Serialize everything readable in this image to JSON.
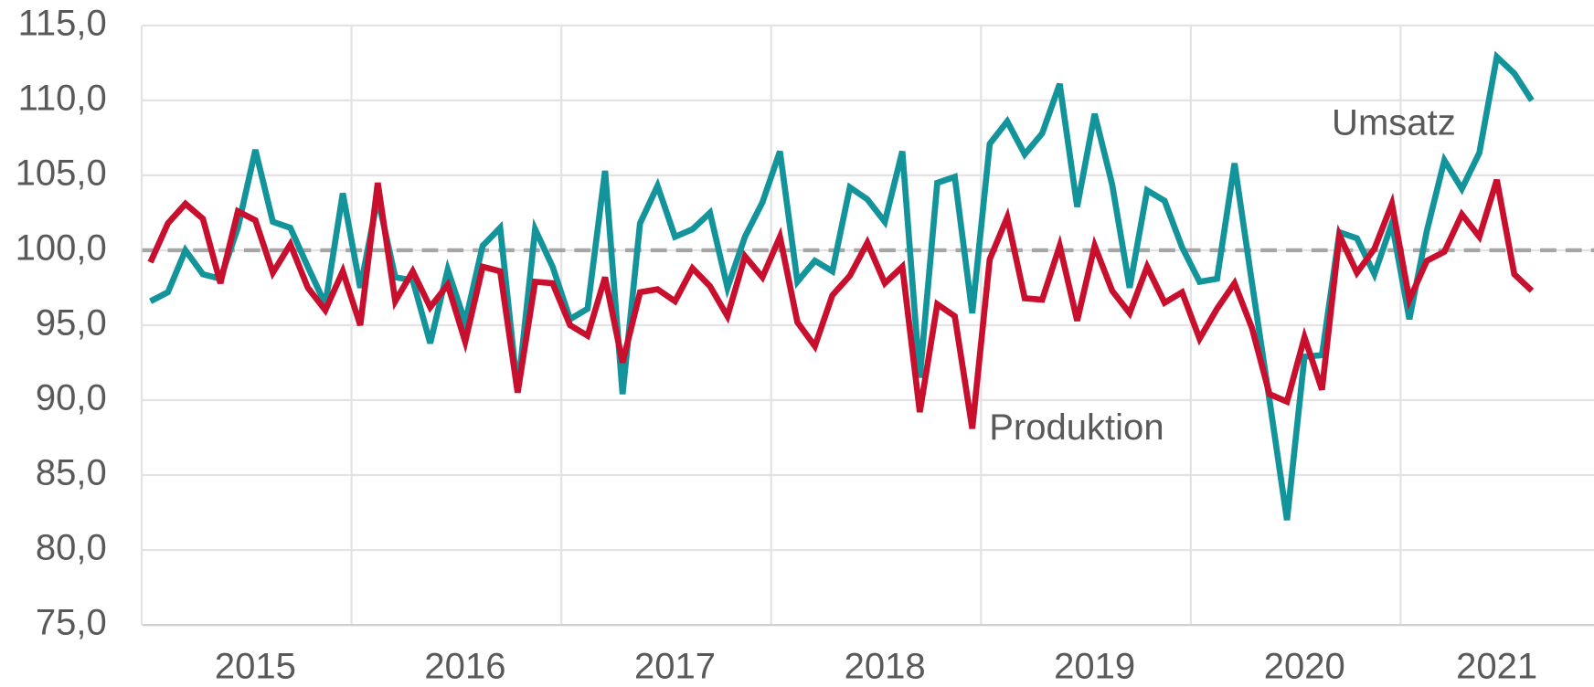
{
  "chart_data": {
    "type": "line",
    "categories": [
      null,
      null,
      null,
      null,
      null,
      null,
      "2015",
      null,
      null,
      null,
      null,
      null,
      null,
      null,
      null,
      null,
      null,
      null,
      "2016",
      null,
      null,
      null,
      null,
      null,
      null,
      null,
      null,
      null,
      null,
      null,
      "2017",
      null,
      null,
      null,
      null,
      null,
      null,
      null,
      null,
      null,
      null,
      null,
      "2018",
      null,
      null,
      null,
      null,
      null,
      null,
      null,
      null,
      null,
      null,
      null,
      "2019",
      null,
      null,
      null,
      null,
      null,
      null,
      null,
      null,
      null,
      null,
      null,
      "2020",
      null,
      null,
      null,
      null,
      null,
      null,
      null,
      null,
      null,
      null,
      "2021",
      null,
      null
    ],
    "series": [
      {
        "name": "Umsatz",
        "color": "#12949a",
        "values": [
          96.6,
          97.2,
          100.0,
          98.4,
          98.1,
          101.5,
          106.7,
          101.9,
          101.5,
          98.9,
          96.4,
          103.8,
          97.5,
          103.5,
          98.2,
          98.0,
          93.8,
          98.7,
          95.2,
          100.3,
          101.5,
          90.6,
          101.4,
          98.9,
          95.4,
          96.1,
          105.3,
          90.4,
          101.8,
          104.3,
          100.9,
          101.4,
          102.5,
          97.5,
          100.9,
          103.2,
          106.6,
          97.9,
          99.3,
          98.6,
          104.2,
          103.4,
          101.9,
          106.6,
          91.5,
          104.5,
          104.9,
          95.8,
          107.1,
          108.6,
          106.4,
          107.8,
          111.1,
          102.9,
          109.1,
          104.4,
          97.5,
          104.0,
          103.3,
          100.2,
          97.9,
          98.1,
          105.8,
          97.8,
          90.0,
          82.0,
          92.9,
          93.0,
          101.2,
          100.8,
          98.4,
          101.8,
          95.4,
          101.3,
          106.0,
          104.1,
          106.5,
          112.9,
          111.8,
          110.0
        ]
      },
      {
        "name": "Produktion",
        "color": "#c8102e",
        "values": [
          99.2,
          101.8,
          103.1,
          102.1,
          97.8,
          102.6,
          102.0,
          98.5,
          100.4,
          97.5,
          96.0,
          98.6,
          95.0,
          104.5,
          96.6,
          98.6,
          96.2,
          97.7,
          93.9,
          98.9,
          98.6,
          90.5,
          97.9,
          97.8,
          95.0,
          94.3,
          98.2,
          92.5,
          97.2,
          97.4,
          96.6,
          98.8,
          97.6,
          95.6,
          99.6,
          98.2,
          100.9,
          95.2,
          93.6,
          97.0,
          98.3,
          100.5,
          97.8,
          98.9,
          89.2,
          96.4,
          95.6,
          88.1,
          99.4,
          102.2,
          96.8,
          96.7,
          100.3,
          95.3,
          100.3,
          97.3,
          95.8,
          98.9,
          96.5,
          97.2,
          94.1,
          96.1,
          97.8,
          94.8,
          90.4,
          89.9,
          94.2,
          90.7,
          101.0,
          98.5,
          100.1,
          103.1,
          96.7,
          99.3,
          99.9,
          102.4,
          100.9,
          104.7,
          98.4,
          97.3
        ]
      }
    ],
    "ylim": [
      75,
      115
    ],
    "yticks": [
      {
        "value": 75,
        "label": "75,0"
      },
      {
        "value": 80,
        "label": "80,0"
      },
      {
        "value": 85,
        "label": "85,0"
      },
      {
        "value": 90,
        "label": "90,0"
      },
      {
        "value": 95,
        "label": "95,0"
      },
      {
        "value": 100,
        "label": "100,0"
      },
      {
        "value": 105,
        "label": "105,0"
      },
      {
        "value": 110,
        "label": "110,0"
      },
      {
        "value": 115,
        "label": "115,0"
      }
    ],
    "grid": true,
    "reference_line": 100
  }
}
